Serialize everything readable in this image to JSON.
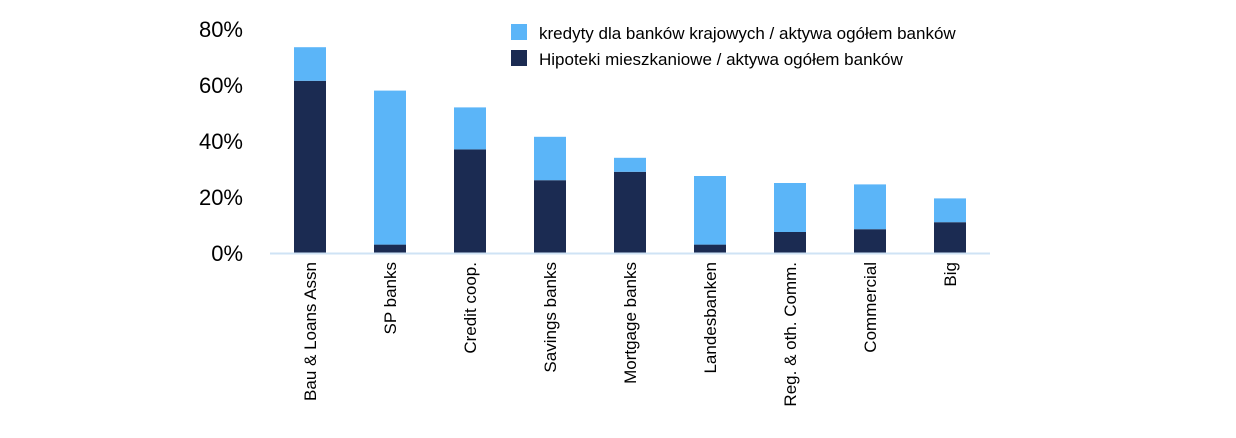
{
  "chart_data": {
    "type": "bar",
    "stacked": true,
    "title": "",
    "xlabel": "",
    "ylabel": "",
    "ylim": [
      0,
      80
    ],
    "y_ticks": [
      0,
      20,
      40,
      60,
      80
    ],
    "y_tick_labels": [
      "0%",
      "20%",
      "40%",
      "60%",
      "80%"
    ],
    "grid": false,
    "legend_position": "top-right",
    "categories": [
      "Bau & Loans Assn",
      "SP banks",
      "Credit coop.",
      "Savings banks",
      "Mortgage banks",
      "Landesbanken",
      "Reg. & oth. Comm.",
      "Commercial",
      "Big"
    ],
    "series": [
      {
        "name": "Hipoteki mieszkaniowe / aktywa ogółem banków",
        "color": "#1b2b52",
        "values": [
          61.5,
          3,
          37,
          26,
          29,
          3,
          7.5,
          8.5,
          11
        ]
      },
      {
        "name": "kredyty dla banków krajowych / aktywa ogółem banków",
        "color": "#5bb5f8",
        "values": [
          12,
          55,
          15,
          15.5,
          5,
          24.5,
          17.5,
          16,
          8.5
        ]
      }
    ],
    "legend_order": [
      1,
      0
    ],
    "axis_color": "#cfe3f5"
  }
}
